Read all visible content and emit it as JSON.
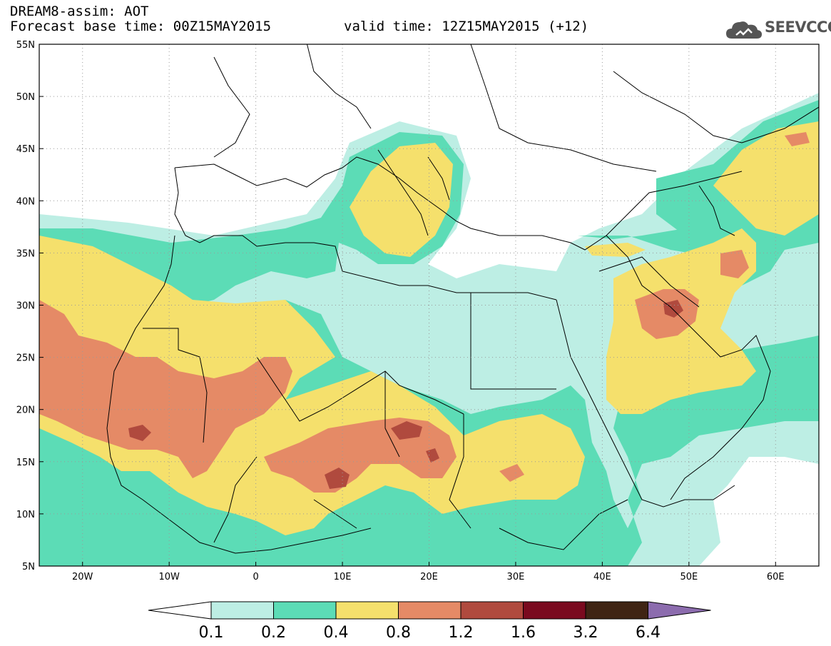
{
  "header": {
    "line1": "DREAM8-assim: AOT",
    "base_time": "Forecast base time: 00Z15MAY2015",
    "valid_time": "valid time: 12Z15MAY2015 (+12)"
  },
  "logo": {
    "text": "SEEVCCC",
    "icon": "cloud-icon"
  },
  "map": {
    "lat_ticks": [
      "55N",
      "50N",
      "45N",
      "40N",
      "35N",
      "30N",
      "25N",
      "20N",
      "15N",
      "10N",
      "5N"
    ],
    "lon_ticks": [
      "20W",
      "10W",
      "0",
      "10E",
      "20E",
      "30E",
      "40E",
      "50E",
      "60E"
    ]
  },
  "colorbar": {
    "labels": [
      "0.1",
      "0.2",
      "0.4",
      "0.8",
      "1.2",
      "1.6",
      "3.2",
      "6.4"
    ],
    "colors": [
      "#ffffff",
      "#bdeee4",
      "#5cdcb6",
      "#f5e06c",
      "#e58a66",
      "#b04a3e",
      "#7a0a1f",
      "#3f2414",
      "#8c6cae"
    ]
  },
  "colors": {
    "c01": "#bdeee4",
    "c02": "#5cdcb6",
    "c04": "#f5e06c",
    "c08": "#e58a66",
    "c12": "#b04a3e"
  }
}
